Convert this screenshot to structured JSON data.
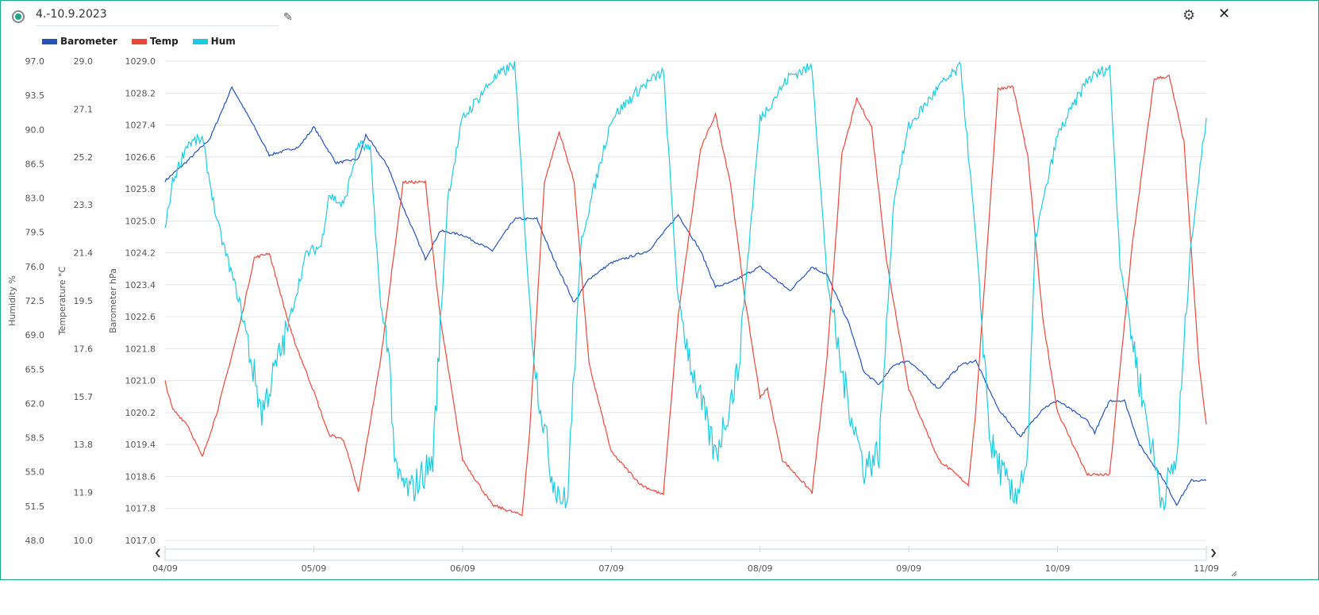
{
  "header": {
    "title": "4.-10.9.2023",
    "icons": [
      "radio-selected-icon",
      "pencil-icon",
      "gear-icon",
      "close-icon"
    ]
  },
  "chart_data": {
    "type": "line",
    "title": "4.-10.9.2023",
    "legend": [
      {
        "name": "Barometer",
        "color": "#2353b8"
      },
      {
        "name": "Temp",
        "color": "#e9473a"
      },
      {
        "name": "Hum",
        "color": "#1ccbe0"
      }
    ],
    "legend_placement": "top-left",
    "x_range_days": [
      0,
      7
    ],
    "x_ticks": [
      "04/09",
      "05/09",
      "06/09",
      "07/09",
      "08/09",
      "09/09",
      "10/09",
      "11/09"
    ],
    "axes": {
      "humidity": {
        "label": "Humidity %",
        "range": [
          48,
          97
        ],
        "ticks": [
          "97.0",
          "93.5",
          "90.0",
          "86.5",
          "83.0",
          "79.5",
          "76.0",
          "72.5",
          "69.0",
          "65.5",
          "62.0",
          "58.5",
          "55.0",
          "51.5",
          "48.0"
        ]
      },
      "temperature": {
        "label": "Temperature °C",
        "range": [
          10,
          29
        ],
        "ticks": [
          "29.0",
          "27.1",
          "25.2",
          "23.3",
          "21.4",
          "19.5",
          "17.6",
          "15.7",
          "13.8",
          "11.9",
          "10.0"
        ]
      },
      "barometer": {
        "label": "Barometer hPa",
        "range": [
          1017,
          1029
        ],
        "ticks": [
          "1029.0",
          "1028.2",
          "1027.4",
          "1026.6",
          "1025.8",
          "1025.0",
          "1024.2",
          "1023.4",
          "1022.6",
          "1021.8",
          "1021.0",
          "1020.2",
          "1019.4",
          "1018.6",
          "1017.8",
          "1017.0"
        ]
      }
    },
    "grid": true,
    "series": [
      {
        "name": "Barometer",
        "axis": "barometer",
        "color": "#2353b8",
        "points": [
          [
            0,
            1026
          ],
          [
            0.15,
            1026.5
          ],
          [
            0.3,
            1027.05
          ],
          [
            0.45,
            1028.35
          ],
          [
            0.6,
            1027.35
          ],
          [
            0.7,
            1026.65
          ],
          [
            0.9,
            1026.85
          ],
          [
            1,
            1027.35
          ],
          [
            1.15,
            1026.45
          ],
          [
            1.3,
            1026.55
          ],
          [
            1.35,
            1027.15
          ],
          [
            1.5,
            1026.35
          ],
          [
            1.6,
            1025.35
          ],
          [
            1.75,
            1024.05
          ],
          [
            1.85,
            1024.75
          ],
          [
            2,
            1024.65
          ],
          [
            2.2,
            1024.25
          ],
          [
            2.35,
            1025.05
          ],
          [
            2.5,
            1025.05
          ],
          [
            2.6,
            1024.15
          ],
          [
            2.75,
            1022.95
          ],
          [
            2.85,
            1023.55
          ],
          [
            3,
            1023.95
          ],
          [
            3.25,
            1024.25
          ],
          [
            3.45,
            1025.15
          ],
          [
            3.6,
            1024.25
          ],
          [
            3.7,
            1023.35
          ],
          [
            3.8,
            1023.45
          ],
          [
            4,
            1023.85
          ],
          [
            4.2,
            1023.25
          ],
          [
            4.35,
            1023.85
          ],
          [
            4.45,
            1023.65
          ],
          [
            4.6,
            1022.4
          ],
          [
            4.7,
            1021.2
          ],
          [
            4.8,
            1020.9
          ],
          [
            4.9,
            1021.4
          ],
          [
            5,
            1021.5
          ],
          [
            5.2,
            1020.8
          ],
          [
            5.35,
            1021.4
          ],
          [
            5.45,
            1021.5
          ],
          [
            5.6,
            1020.3
          ],
          [
            5.75,
            1019.6
          ],
          [
            5.9,
            1020.3
          ],
          [
            6,
            1020.5
          ],
          [
            6.2,
            1020
          ],
          [
            6.25,
            1019.7
          ],
          [
            6.35,
            1020.5
          ],
          [
            6.45,
            1020.5
          ],
          [
            6.55,
            1019.4
          ],
          [
            6.7,
            1018.6
          ],
          [
            6.8,
            1017.9
          ],
          [
            6.9,
            1018.5
          ],
          [
            7,
            1018.5
          ]
        ]
      },
      {
        "name": "Temp",
        "axis": "temperature",
        "color": "#e9473a",
        "points": [
          [
            0,
            16.3
          ],
          [
            0.05,
            15.2
          ],
          [
            0.15,
            14.6
          ],
          [
            0.25,
            13.3
          ],
          [
            0.35,
            15.1
          ],
          [
            0.5,
            18.5
          ],
          [
            0.6,
            21.2
          ],
          [
            0.7,
            21.4
          ],
          [
            0.85,
            18.2
          ],
          [
            1,
            15.9
          ],
          [
            1.1,
            14.2
          ],
          [
            1.2,
            14
          ],
          [
            1.3,
            11.9
          ],
          [
            1.45,
            17.2
          ],
          [
            1.6,
            24.2
          ],
          [
            1.75,
            24.2
          ],
          [
            1.85,
            18.8
          ],
          [
            2,
            13.2
          ],
          [
            2.2,
            11.4
          ],
          [
            2.4,
            11
          ],
          [
            2.45,
            14.2
          ],
          [
            2.55,
            24.2
          ],
          [
            2.65,
            26.2
          ],
          [
            2.75,
            24.2
          ],
          [
            2.85,
            17
          ],
          [
            3,
            13.5
          ],
          [
            3.2,
            12.2
          ],
          [
            3.35,
            11.8
          ],
          [
            3.45,
            18.9
          ],
          [
            3.6,
            25.5
          ],
          [
            3.7,
            26.9
          ],
          [
            3.8,
            24.2
          ],
          [
            3.9,
            19.5
          ],
          [
            4,
            15.7
          ],
          [
            4.05,
            16
          ],
          [
            4.15,
            13.2
          ],
          [
            4.35,
            11.9
          ],
          [
            4.45,
            17.2
          ],
          [
            4.55,
            25.3
          ],
          [
            4.65,
            27.5
          ],
          [
            4.75,
            26.4
          ],
          [
            4.85,
            21.1
          ],
          [
            5,
            16
          ],
          [
            5.2,
            13.2
          ],
          [
            5.4,
            12.2
          ],
          [
            5.45,
            15.1
          ],
          [
            5.6,
            27.9
          ],
          [
            5.7,
            28
          ],
          [
            5.8,
            25.2
          ],
          [
            5.9,
            18.8
          ],
          [
            6,
            15.1
          ],
          [
            6.2,
            12.6
          ],
          [
            6.35,
            12.6
          ],
          [
            6.5,
            21.6
          ],
          [
            6.65,
            28.3
          ],
          [
            6.75,
            28.4
          ],
          [
            6.85,
            25.8
          ],
          [
            6.95,
            17
          ],
          [
            7,
            14.6
          ]
        ]
      },
      {
        "name": "Hum",
        "axis": "humidity",
        "color": "#1ccbe0",
        "points": [
          [
            0,
            79.7
          ],
          [
            0.05,
            84.6
          ],
          [
            0.15,
            88.6
          ],
          [
            0.25,
            89
          ],
          [
            0.35,
            80.5
          ],
          [
            0.5,
            72.4
          ],
          [
            0.65,
            61.1
          ],
          [
            0.8,
            68.4
          ],
          [
            0.95,
            77.3
          ],
          [
            1.05,
            78.1
          ],
          [
            1.1,
            83.4
          ],
          [
            1.2,
            82.2
          ],
          [
            1.3,
            88.6
          ],
          [
            1.38,
            87.8
          ],
          [
            1.45,
            71.6
          ],
          [
            1.5,
            68.4
          ],
          [
            1.55,
            54.6
          ],
          [
            1.65,
            53
          ],
          [
            1.8,
            56.2
          ],
          [
            1.9,
            83
          ],
          [
            2,
            91.1
          ],
          [
            2.2,
            95.1
          ],
          [
            2.35,
            96.7
          ],
          [
            2.45,
            72.4
          ],
          [
            2.5,
            64.3
          ],
          [
            2.6,
            54.6
          ],
          [
            2.7,
            51.4
          ],
          [
            2.8,
            78.9
          ],
          [
            3,
            91.1
          ],
          [
            3.2,
            94.3
          ],
          [
            3.35,
            95.9
          ],
          [
            3.45,
            72.4
          ],
          [
            3.55,
            65.1
          ],
          [
            3.7,
            56.6
          ],
          [
            3.85,
            65.1
          ],
          [
            4,
            91.1
          ],
          [
            4.2,
            95.5
          ],
          [
            4.35,
            96.4
          ],
          [
            4.45,
            74.8
          ],
          [
            4.55,
            65.1
          ],
          [
            4.7,
            55.4
          ],
          [
            4.8,
            57
          ],
          [
            4.9,
            83
          ],
          [
            5,
            90.3
          ],
          [
            5.2,
            94.3
          ],
          [
            5.35,
            96.4
          ],
          [
            5.45,
            78.9
          ],
          [
            5.55,
            57.8
          ],
          [
            5.7,
            52.2
          ],
          [
            5.8,
            56.2
          ],
          [
            5.85,
            78.9
          ],
          [
            6,
            89.4
          ],
          [
            6.2,
            95.1
          ],
          [
            6.35,
            96.4
          ],
          [
            6.42,
            76.5
          ],
          [
            6.55,
            64.3
          ],
          [
            6.7,
            52.2
          ],
          [
            6.8,
            56.2
          ],
          [
            6.9,
            78.9
          ],
          [
            7,
            91.2
          ]
        ]
      }
    ]
  }
}
